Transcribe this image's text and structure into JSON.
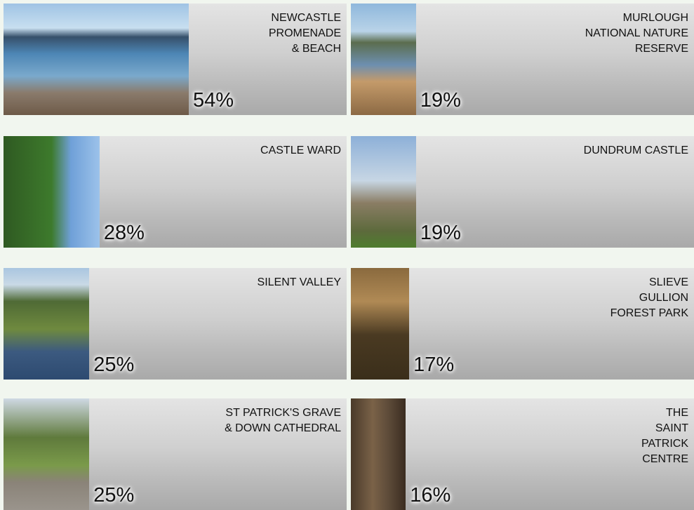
{
  "tiles": {
    "names": [
      [
        "NEWCASTLE",
        "PROMENADE",
        "& BEACH"
      ],
      [
        "MURLOUGH",
        "NATIONAL NATURE",
        "RESERVE"
      ],
      [
        "CASTLE WARD"
      ],
      [
        "DUNDRUM CASTLE"
      ],
      [
        "SILENT VALLEY"
      ],
      [
        "SLIEVE",
        "GULLION",
        "FOREST PARK"
      ],
      [
        "ST PATRICK'S GRAVE",
        "& DOWN CATHEDRAL"
      ],
      [
        "THE",
        "SAINT",
        "PATRICK",
        "CENTRE"
      ]
    ],
    "values": [
      54,
      19,
      28,
      19,
      25,
      17,
      25,
      16
    ],
    "value_labels": [
      "54%",
      "19%",
      "28%",
      "19%",
      "25%",
      "17%",
      "25%",
      "16%"
    ]
  }
}
